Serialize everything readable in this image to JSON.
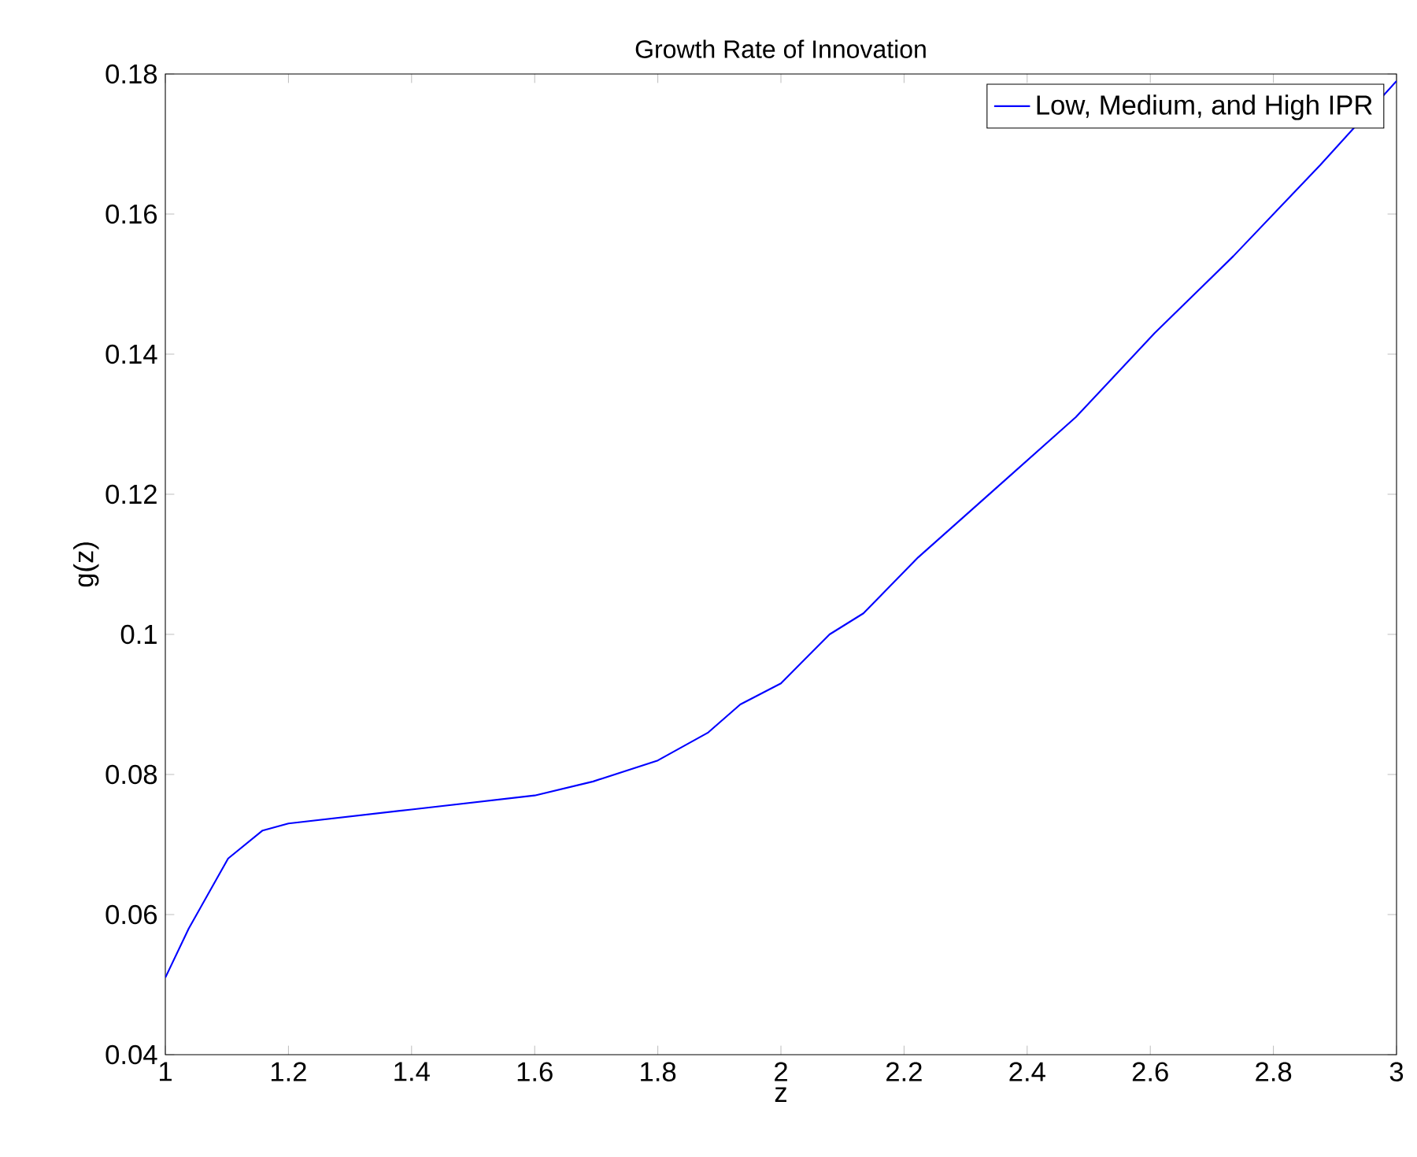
{
  "chart_data": {
    "type": "line",
    "title": "Growth Rate of Innovation",
    "xlabel": "z",
    "ylabel": "g(z)",
    "x": [
      1.0,
      1.038,
      1.102,
      1.158,
      1.2,
      1.4,
      1.6,
      1.695,
      1.8,
      1.882,
      1.934,
      2.0,
      2.079,
      2.134,
      2.223,
      2.351,
      2.479,
      2.607,
      2.735,
      2.876,
      3.0
    ],
    "series": [
      {
        "name": "Low, Medium, and High IPR",
        "color": "#0000ff",
        "values": [
          0.051,
          0.058,
          0.068,
          0.072,
          0.073,
          0.075,
          0.077,
          0.079,
          0.082,
          0.086,
          0.09,
          0.093,
          0.1,
          0.103,
          0.111,
          0.121,
          0.131,
          0.143,
          0.154,
          0.167,
          0.179
        ]
      }
    ],
    "xlim": [
      1,
      3
    ],
    "ylim": [
      0.04,
      0.18
    ],
    "xticks": [
      1,
      1.2,
      1.4,
      1.6,
      1.8,
      2,
      2.2,
      2.4,
      2.6,
      2.8,
      3
    ],
    "yticks": [
      0.04,
      0.06,
      0.08,
      0.1,
      0.12,
      0.14,
      0.16,
      0.18
    ],
    "grid": false,
    "legend": "top right",
    "marker": "none",
    "line_style": "solid"
  }
}
